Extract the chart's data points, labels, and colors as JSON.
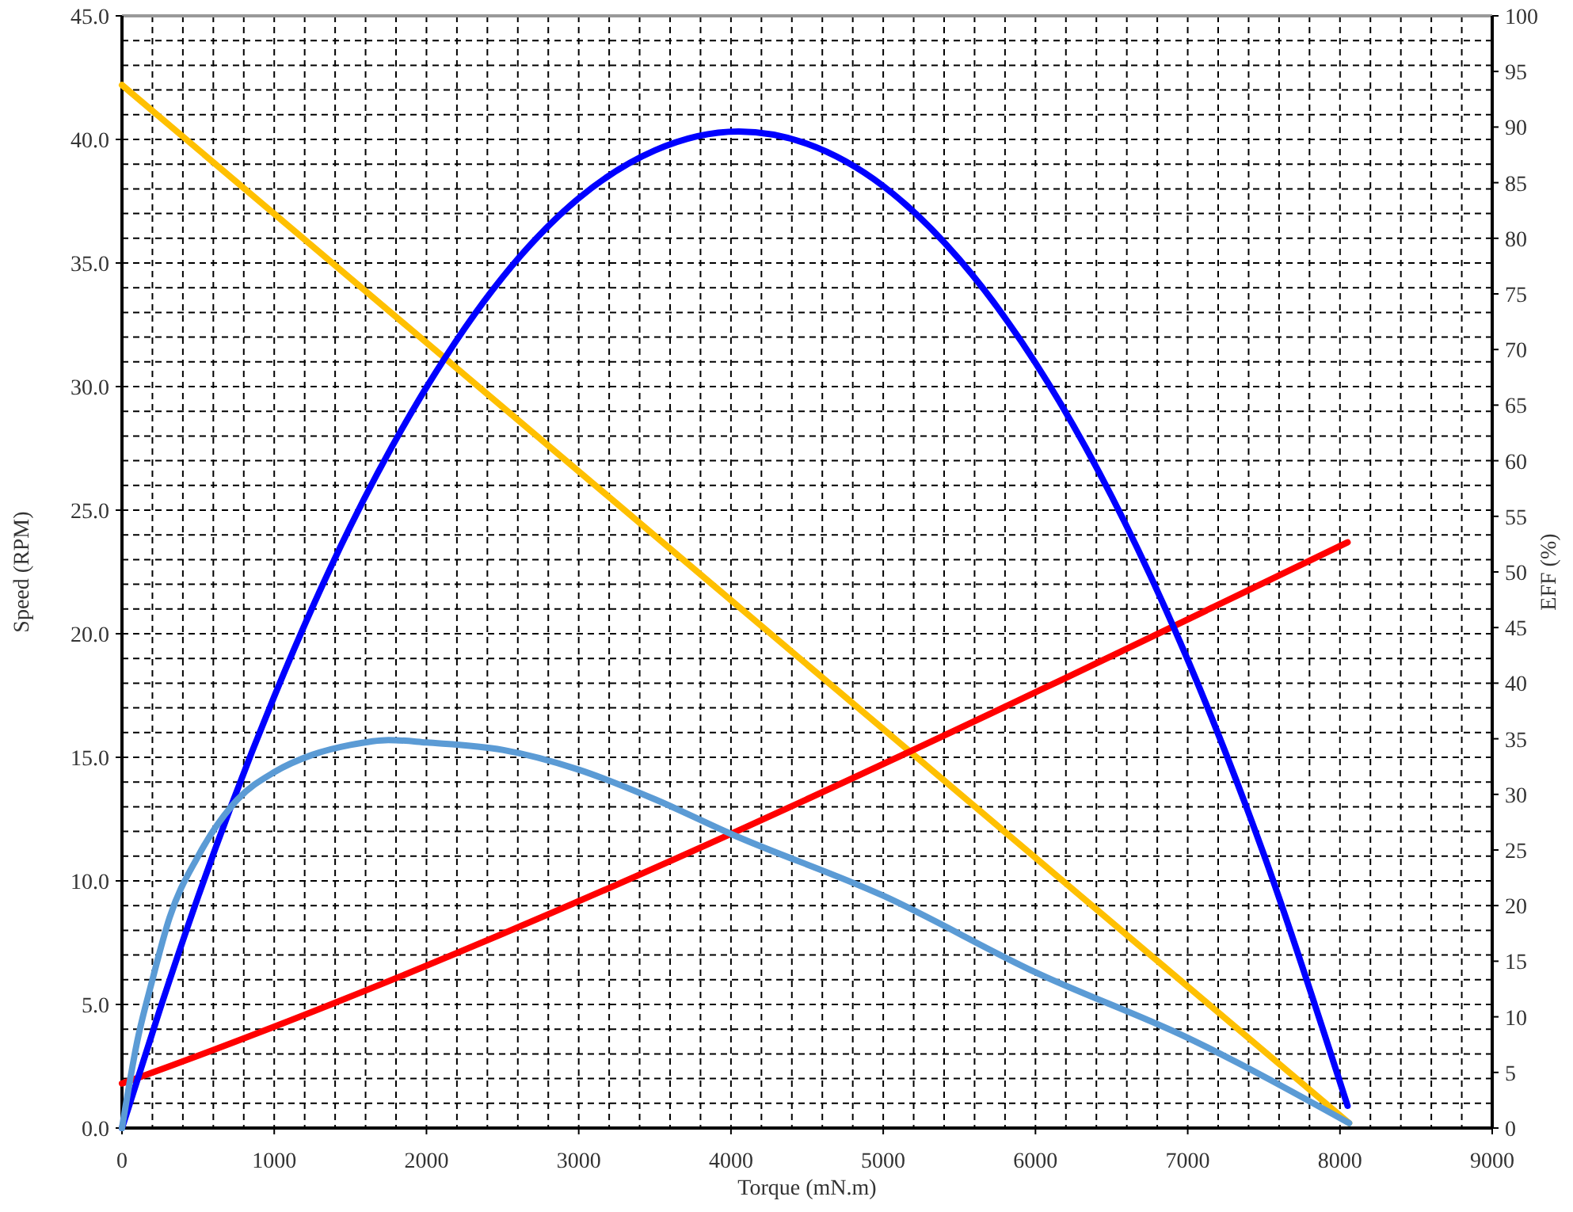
{
  "chart_data": {
    "type": "line",
    "xlabel": "Torque (mN.m)",
    "ylabel": "Speed (RPM)",
    "y2label": "EFF (%)",
    "grid": true,
    "xlim": [
      0,
      9000
    ],
    "xticks": [
      0,
      {
        "value": 200,
        "label": null
      },
      {
        "value": 400,
        "label": null
      },
      {
        "value": 600,
        "label": null
      },
      {
        "value": 800,
        "label": null
      },
      1000,
      {
        "value": 1200,
        "label": null
      },
      {
        "value": 1400,
        "label": null
      },
      {
        "value": 1600,
        "label": null
      },
      {
        "value": 1800,
        "label": null
      },
      2000,
      {
        "value": 2200,
        "label": null
      },
      {
        "value": 2400,
        "label": null
      },
      {
        "value": 2600,
        "label": null
      },
      {
        "value": 2800,
        "label": null
      },
      3000,
      {
        "value": 3200,
        "label": null
      },
      {
        "value": 3400,
        "label": null
      },
      {
        "value": 3600,
        "label": null
      },
      {
        "value": 3800,
        "label": null
      },
      4000,
      {
        "value": 4200,
        "label": null
      },
      {
        "value": 4400,
        "label": null
      },
      {
        "value": 4600,
        "label": null
      },
      {
        "value": 4800,
        "label": null
      },
      5000,
      {
        "value": 5200,
        "label": null
      },
      {
        "value": 5400,
        "label": null
      },
      {
        "value": 5600,
        "label": null
      },
      {
        "value": 5800,
        "label": null
      },
      6000,
      {
        "value": 6200,
        "label": null
      },
      {
        "value": 6400,
        "label": null
      },
      {
        "value": 6600,
        "label": null
      },
      {
        "value": 6800,
        "label": null
      },
      7000,
      {
        "value": 7200,
        "label": null
      },
      {
        "value": 7400,
        "label": null
      },
      {
        "value": 7600,
        "label": null
      },
      {
        "value": 7800,
        "label": null
      },
      8000,
      {
        "value": 8200,
        "label": null
      },
      {
        "value": 8400,
        "label": null
      },
      {
        "value": 8600,
        "label": null
      },
      {
        "value": 8800,
        "label": null
      },
      9000
    ],
    "ylim": [
      0,
      45
    ],
    "yticks": [
      {
        "value": 0,
        "label": "0.0"
      },
      {
        "value": 1,
        "label": null
      },
      {
        "value": 2,
        "label": null
      },
      {
        "value": 3,
        "label": null
      },
      {
        "value": 4,
        "label": null
      },
      {
        "value": 5,
        "label": "5.0"
      },
      {
        "value": 6,
        "label": null
      },
      {
        "value": 7,
        "label": null
      },
      {
        "value": 8,
        "label": null
      },
      {
        "value": 9,
        "label": null
      },
      {
        "value": 10,
        "label": "10.0"
      },
      {
        "value": 11,
        "label": null
      },
      {
        "value": 12,
        "label": null
      },
      {
        "value": 13,
        "label": null
      },
      {
        "value": 14,
        "label": null
      },
      {
        "value": 15,
        "label": "15.0"
      },
      {
        "value": 16,
        "label": null
      },
      {
        "value": 17,
        "label": null
      },
      {
        "value": 18,
        "label": null
      },
      {
        "value": 19,
        "label": null
      },
      {
        "value": 20,
        "label": "20.0"
      },
      {
        "value": 21,
        "label": null
      },
      {
        "value": 22,
        "label": null
      },
      {
        "value": 23,
        "label": null
      },
      {
        "value": 24,
        "label": null
      },
      {
        "value": 25,
        "label": "25.0"
      },
      {
        "value": 26,
        "label": null
      },
      {
        "value": 27,
        "label": null
      },
      {
        "value": 28,
        "label": null
      },
      {
        "value": 29,
        "label": null
      },
      {
        "value": 30,
        "label": "30.0"
      },
      {
        "value": 31,
        "label": null
      },
      {
        "value": 32,
        "label": null
      },
      {
        "value": 33,
        "label": null
      },
      {
        "value": 34,
        "label": null
      },
      {
        "value": 35,
        "label": "35.0"
      },
      {
        "value": 36,
        "label": null
      },
      {
        "value": 37,
        "label": null
      },
      {
        "value": 38,
        "label": null
      },
      {
        "value": 39,
        "label": null
      },
      {
        "value": 40,
        "label": "40.0"
      },
      {
        "value": 41,
        "label": null
      },
      {
        "value": 42,
        "label": null
      },
      {
        "value": 43,
        "label": null
      },
      {
        "value": 44,
        "label": null
      },
      {
        "value": 45,
        "label": "45.0"
      }
    ],
    "y2lim": [
      0,
      100
    ],
    "y2ticks": [
      0,
      5,
      10,
      15,
      20,
      25,
      30,
      35,
      40,
      45,
      50,
      55,
      60,
      65,
      70,
      75,
      80,
      85,
      90,
      95,
      100
    ],
    "series": [
      {
        "color": "#ffc000",
        "x": [
          0,
          8060
        ],
        "values": [
          42.2,
          0.2
        ]
      },
      {
        "color": "#ff0000",
        "x": [
          0,
          135,
          8050
        ],
        "values": [
          1.8,
          2.1,
          23.7
        ]
      },
      {
        "color": "#0000ff",
        "axis": "y2",
        "x": [
          0,
          250,
          500,
          1000,
          1500,
          2000,
          2500,
          3000,
          3500,
          4050,
          4500,
          5000,
          5500,
          6000,
          6500,
          7000,
          7500,
          8050
        ],
        "values": [
          0,
          10.7,
          20.8,
          38.8,
          54.1,
          66.6,
          76.5,
          83.6,
          87.9,
          89.6,
          88.5,
          84.7,
          78.1,
          68.8,
          56.8,
          42.1,
          24.6,
          2.0
        ]
      },
      {
        "color": "#5b9bd5",
        "x": [
          0,
          100,
          200,
          312,
          500,
          760,
          1000,
          1250,
          1500,
          1750,
          2000,
          2500,
          3000,
          3500,
          4000,
          5000,
          6000,
          7000,
          8060
        ],
        "values": [
          0,
          3.5,
          6.0,
          8.5,
          11.0,
          13.3,
          14.4,
          15.1,
          15.5,
          15.7,
          15.6,
          15.3,
          14.5,
          13.3,
          11.9,
          9.4,
          6.3,
          3.65,
          0.2
        ]
      }
    ]
  }
}
